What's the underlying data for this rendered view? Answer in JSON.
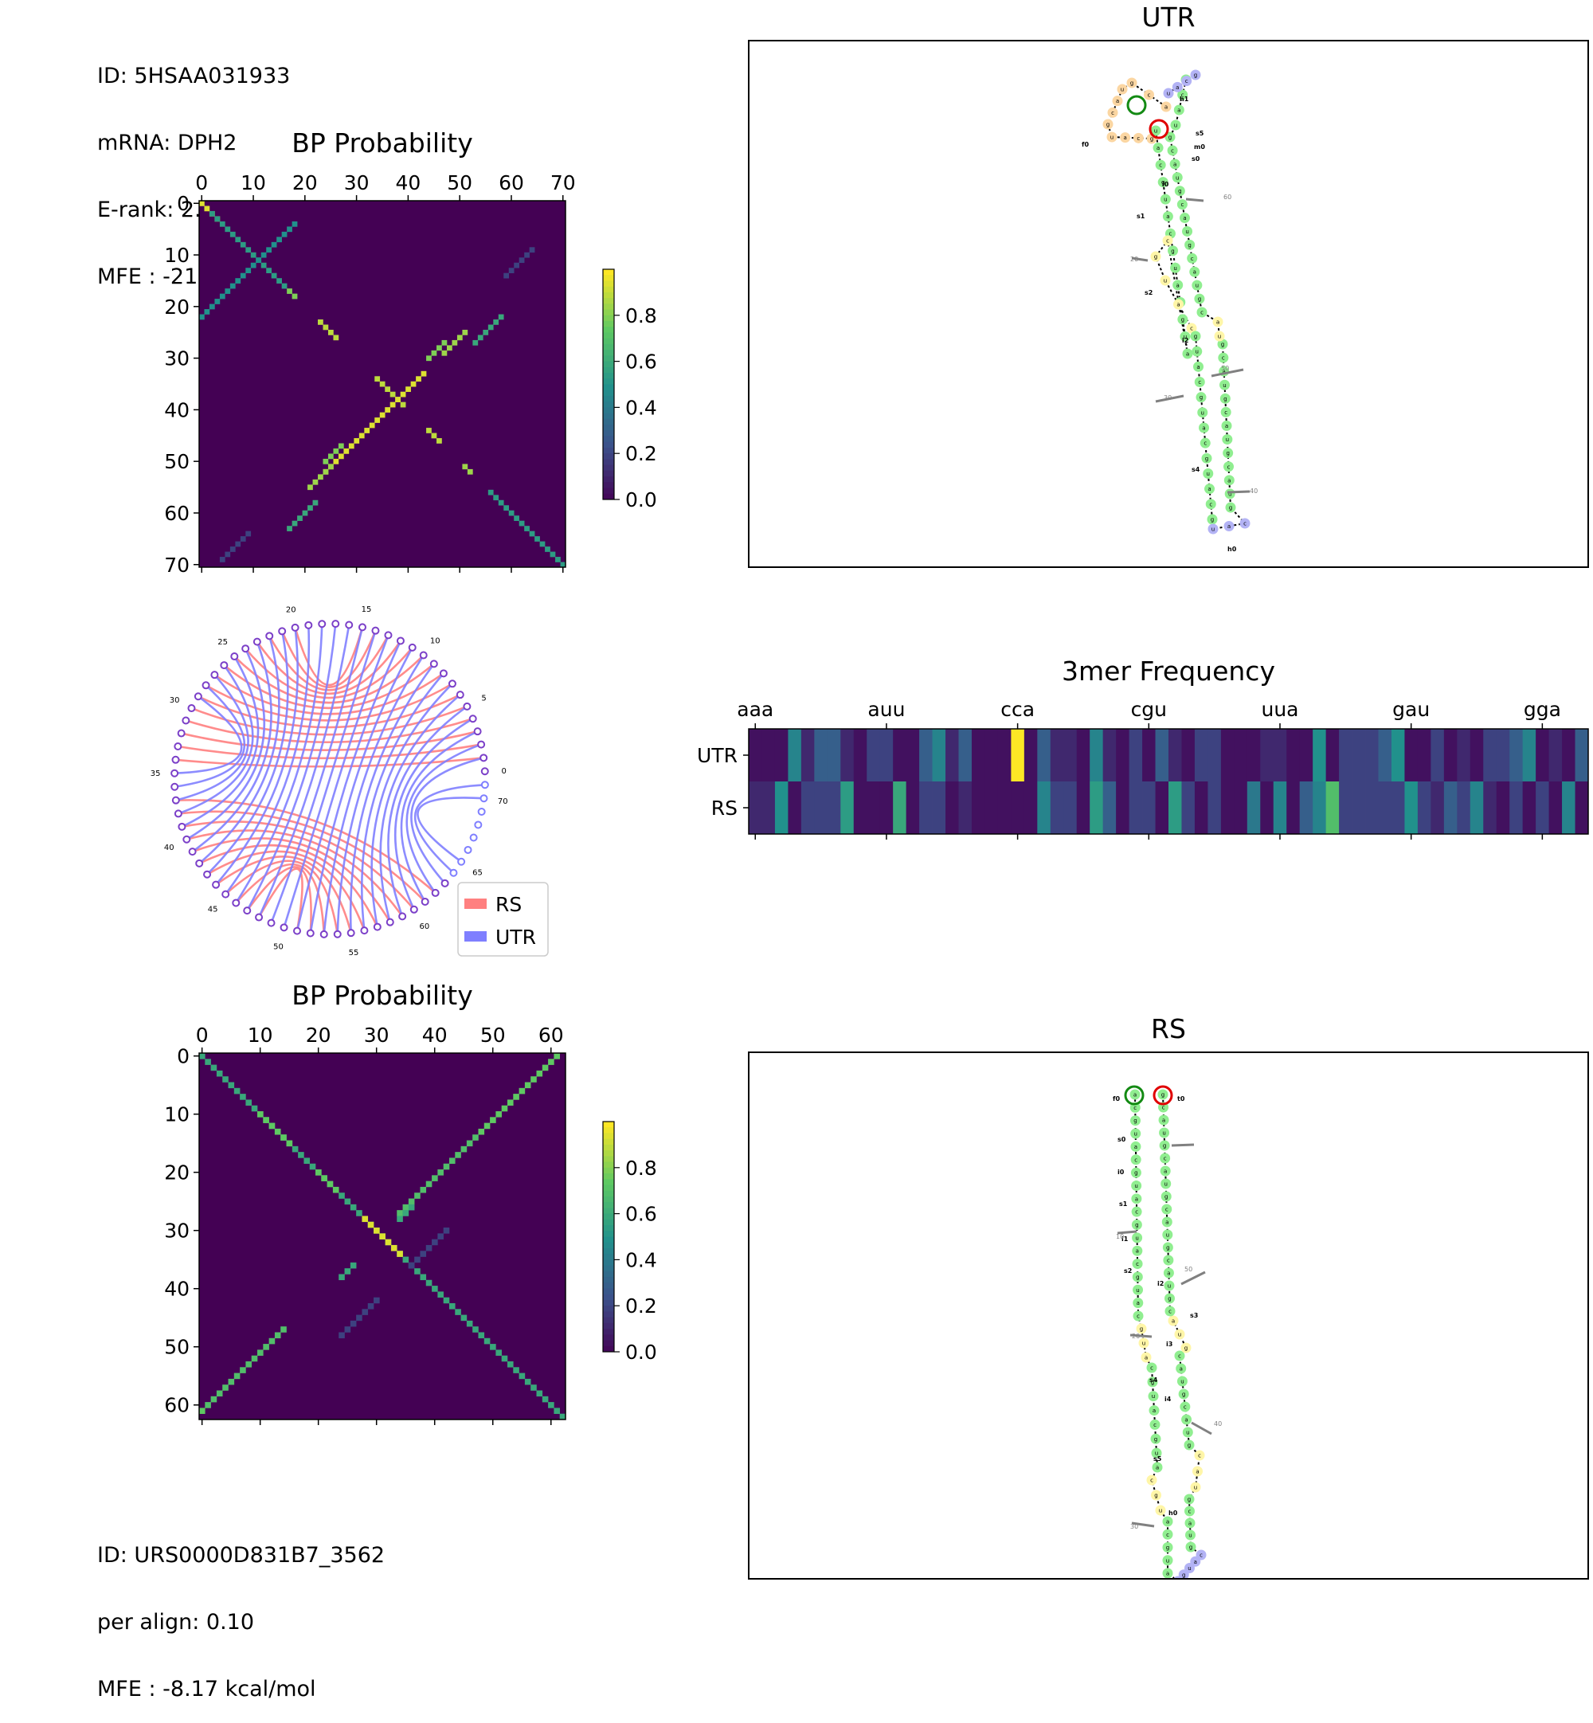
{
  "info_top": {
    "id": "ID: 5HSAA031933",
    "mrna": "mRNA: DPH2",
    "erank": "E-rank: 2.59",
    "mfe": "MFE : -21.16 kcal/mol"
  },
  "info_bottom": {
    "id": "ID: URS0000D831B7_3562",
    "per_align": "per align: 0.10",
    "mfe": "MFE : -8.17 kcal/mol"
  },
  "colors": {
    "utr": "#7f7fff",
    "rs": "#ff8080",
    "pair": "#7b3fc8",
    "stem": "#90ee90",
    "loop": "#fff6a8",
    "hairpin": "#b3b3f5",
    "extloop": "#fbd6a2",
    "viridis_low": "#440154",
    "viridis_high": "#fde725"
  },
  "chart_data": [
    {
      "id": "bp-top",
      "type": "heatmap",
      "title": "BP Probability",
      "size": 71,
      "xticks": [
        0,
        10,
        20,
        30,
        40,
        50,
        60,
        70
      ],
      "yticks": [
        0,
        10,
        20,
        30,
        40,
        50,
        60,
        70
      ],
      "colorbar": {
        "range": [
          0,
          1
        ],
        "ticks": [
          "0.0",
          "0.2",
          "0.4",
          "0.6",
          "0.8"
        ],
        "tick_values": [
          0,
          0.2,
          0.4,
          0.6,
          0.8
        ]
      },
      "segments": [
        {
          "i": 0,
          "j": 0,
          "n": 4,
          "dir": 1,
          "v": 0.95
        },
        {
          "i": 2,
          "j": 2,
          "n": 15,
          "dir": 1,
          "v": 0.55
        },
        {
          "i": 4,
          "j": 18,
          "n": 14,
          "dir": -1,
          "v": 0.5
        },
        {
          "i": 18,
          "j": 4,
          "n": 14,
          "dir": -1,
          "v": 0.5
        },
        {
          "i": 17,
          "j": 17,
          "n": 2,
          "dir": 1,
          "v": 0.8
        },
        {
          "i": 23,
          "j": 23,
          "n": 4,
          "dir": 1,
          "v": 0.9
        },
        {
          "i": 34,
          "j": 34,
          "n": 6,
          "dir": 1,
          "v": 0.9
        },
        {
          "i": 33,
          "j": 43,
          "n": 10,
          "dir": -1,
          "v": 0.95
        },
        {
          "i": 43,
          "j": 33,
          "n": 10,
          "dir": -1,
          "v": 0.95
        },
        {
          "i": 25,
          "j": 51,
          "n": 5,
          "dir": -1,
          "v": 0.85
        },
        {
          "i": 51,
          "j": 25,
          "n": 5,
          "dir": -1,
          "v": 0.85
        },
        {
          "i": 44,
          "j": 44,
          "n": 3,
          "dir": 1,
          "v": 0.9
        },
        {
          "i": 47,
          "j": 27,
          "n": 4,
          "dir": -1,
          "v": 0.8
        },
        {
          "i": 27,
          "j": 47,
          "n": 4,
          "dir": -1,
          "v": 0.8
        },
        {
          "i": 22,
          "j": 58,
          "n": 6,
          "dir": -1,
          "v": 0.6
        },
        {
          "i": 58,
          "j": 22,
          "n": 6,
          "dir": -1,
          "v": 0.6
        },
        {
          "i": 56,
          "j": 56,
          "n": 15,
          "dir": 1,
          "v": 0.55
        },
        {
          "i": 51,
          "j": 51,
          "n": 2,
          "dir": 1,
          "v": 0.85
        },
        {
          "i": 9,
          "j": 64,
          "n": 6,
          "dir": -1,
          "v": 0.2
        },
        {
          "i": 64,
          "j": 9,
          "n": 6,
          "dir": -1,
          "v": 0.2
        }
      ]
    },
    {
      "id": "bp-bottom",
      "type": "heatmap",
      "title": "BP Probability",
      "size": 63,
      "xticks": [
        0,
        10,
        20,
        30,
        40,
        50,
        60
      ],
      "yticks": [
        0,
        10,
        20,
        30,
        40,
        50,
        60
      ],
      "colorbar": {
        "range": [
          0,
          1
        ],
        "ticks": [
          "0.0",
          "0.2",
          "0.4",
          "0.6",
          "0.8"
        ],
        "tick_values": [
          0,
          0.2,
          0.4,
          0.6,
          0.8
        ]
      },
      "segments": [
        {
          "i": 0,
          "j": 0,
          "n": 63,
          "dir": 1,
          "v": 0.6
        },
        {
          "i": 0,
          "j": 61,
          "n": 14,
          "dir": -1,
          "v": 0.75
        },
        {
          "i": 61,
          "j": 0,
          "n": 14,
          "dir": -1,
          "v": 0.75
        },
        {
          "i": 14,
          "j": 47,
          "n": 14,
          "dir": -1,
          "v": 0.7
        },
        {
          "i": 47,
          "j": 14,
          "n": 14,
          "dir": -1,
          "v": 0.7
        },
        {
          "i": 28,
          "j": 28,
          "n": 7,
          "dir": 1,
          "v": 0.95
        },
        {
          "i": 10,
          "j": 10,
          "n": 6,
          "dir": 1,
          "v": 0.75
        },
        {
          "i": 20,
          "j": 20,
          "n": 4,
          "dir": 1,
          "v": 0.75
        },
        {
          "i": 26,
          "j": 36,
          "n": 3,
          "dir": -1,
          "v": 0.6
        },
        {
          "i": 36,
          "j": 26,
          "n": 3,
          "dir": -1,
          "v": 0.6
        },
        {
          "i": 30,
          "j": 42,
          "n": 7,
          "dir": -1,
          "v": 0.2
        },
        {
          "i": 42,
          "j": 30,
          "n": 7,
          "dir": -1,
          "v": 0.2
        }
      ]
    },
    {
      "id": "arc",
      "type": "arc",
      "n": 72,
      "labels": [
        0,
        5,
        10,
        15,
        20,
        25,
        30,
        35,
        40,
        45,
        50,
        55,
        60,
        65,
        70
      ],
      "legend": [
        "RS",
        "UTR"
      ],
      "utr_pairs": [
        [
          1,
          63
        ],
        [
          2,
          62
        ],
        [
          3,
          61
        ],
        [
          4,
          60
        ],
        [
          5,
          59
        ],
        [
          6,
          58
        ],
        [
          7,
          57
        ],
        [
          8,
          56
        ],
        [
          9,
          55
        ],
        [
          10,
          54
        ],
        [
          11,
          53
        ],
        [
          12,
          52
        ],
        [
          13,
          51
        ],
        [
          14,
          50
        ],
        [
          15,
          49
        ],
        [
          16,
          48
        ],
        [
          17,
          47
        ],
        [
          18,
          46
        ],
        [
          19,
          45
        ],
        [
          20,
          44
        ],
        [
          21,
          43
        ],
        [
          22,
          42
        ],
        [
          23,
          41
        ],
        [
          24,
          40
        ],
        [
          25,
          39
        ],
        [
          26,
          38
        ],
        [
          27,
          37
        ],
        [
          28,
          36
        ],
        [
          29,
          35
        ],
        [
          64,
          71
        ],
        [
          65,
          70
        ]
      ],
      "rs_pairs": [
        [
          1,
          34
        ],
        [
          2,
          33
        ],
        [
          3,
          32
        ],
        [
          4,
          31
        ],
        [
          5,
          30
        ],
        [
          6,
          29
        ],
        [
          7,
          28
        ],
        [
          8,
          27
        ],
        [
          9,
          26
        ],
        [
          10,
          25
        ],
        [
          11,
          24
        ],
        [
          12,
          23
        ],
        [
          13,
          22
        ],
        [
          14,
          21
        ],
        [
          15,
          20
        ],
        [
          37,
          62
        ],
        [
          38,
          61
        ],
        [
          39,
          60
        ],
        [
          40,
          59
        ],
        [
          41,
          58
        ],
        [
          42,
          57
        ],
        [
          43,
          56
        ],
        [
          44,
          55
        ],
        [
          45,
          54
        ],
        [
          46,
          53
        ],
        [
          47,
          52
        ],
        [
          48,
          51
        ]
      ]
    },
    {
      "id": "kmer",
      "type": "heatmap",
      "title": "3mer Frequency",
      "rows": [
        "UTR",
        "RS"
      ],
      "xticks": [
        "aaa",
        "auu",
        "cca",
        "cgu",
        "uua",
        "gau",
        "gga"
      ],
      "tick_index": [
        0,
        10,
        20,
        30,
        40,
        50,
        60
      ],
      "n": 64,
      "values": [
        [
          0.05,
          0.05,
          0.05,
          0.45,
          0.12,
          0.3,
          0.3,
          0.12,
          0.05,
          0.2,
          0.2,
          0.05,
          0.05,
          0.3,
          0.45,
          0.12,
          0.3,
          0.05,
          0.05,
          0.05,
          1.0,
          0.05,
          0.3,
          0.12,
          0.12,
          0.05,
          0.45,
          0.12,
          0.05,
          0.2,
          0.05,
          0.3,
          0.12,
          0.05,
          0.2,
          0.2,
          0.05,
          0.05,
          0.05,
          0.12,
          0.12,
          0.05,
          0.05,
          0.5,
          0.05,
          0.2,
          0.2,
          0.2,
          0.3,
          0.5,
          0.05,
          0.05,
          0.2,
          0.05,
          0.12,
          0.05,
          0.2,
          0.2,
          0.3,
          0.45,
          0.05,
          0.12,
          0.05,
          0.3
        ],
        [
          0.12,
          0.12,
          0.5,
          0.05,
          0.2,
          0.2,
          0.2,
          0.55,
          0.05,
          0.05,
          0.05,
          0.6,
          0.05,
          0.2,
          0.2,
          0.05,
          0.12,
          0.05,
          0.05,
          0.05,
          0.05,
          0.05,
          0.45,
          0.2,
          0.2,
          0.05,
          0.55,
          0.3,
          0.05,
          0.2,
          0.2,
          0.05,
          0.55,
          0.2,
          0.05,
          0.2,
          0.05,
          0.05,
          0.4,
          0.05,
          0.45,
          0.05,
          0.3,
          0.45,
          0.7,
          0.2,
          0.2,
          0.2,
          0.2,
          0.2,
          0.5,
          0.2,
          0.12,
          0.3,
          0.2,
          0.45,
          0.12,
          0.05,
          0.2,
          0.05,
          0.2,
          0.05,
          0.45,
          0.05
        ]
      ]
    }
  ],
  "utr_structure": {
    "title": "UTR",
    "loop_labels": [
      "h1",
      "s5",
      "m0",
      "s0",
      "f0",
      "i0",
      "s1",
      "s2",
      "i2",
      "s4",
      "h0"
    ],
    "index_labels": [
      "20",
      "50",
      "40",
      "60",
      "30"
    ],
    "five_prime_marker": "a",
    "three_prime_marker": "g"
  },
  "rs_structure": {
    "title": "RS",
    "loop_labels": [
      "f0",
      "t0",
      "s0",
      "i0",
      "s1",
      "i1",
      "s2",
      "i2",
      "s3",
      "i3",
      "s4",
      "i4",
      "s5",
      "h0"
    ],
    "index_labels": [
      "10",
      "50",
      "20",
      "40",
      "30"
    ],
    "five_prime_marker": "a",
    "three_prime_marker": "g"
  }
}
